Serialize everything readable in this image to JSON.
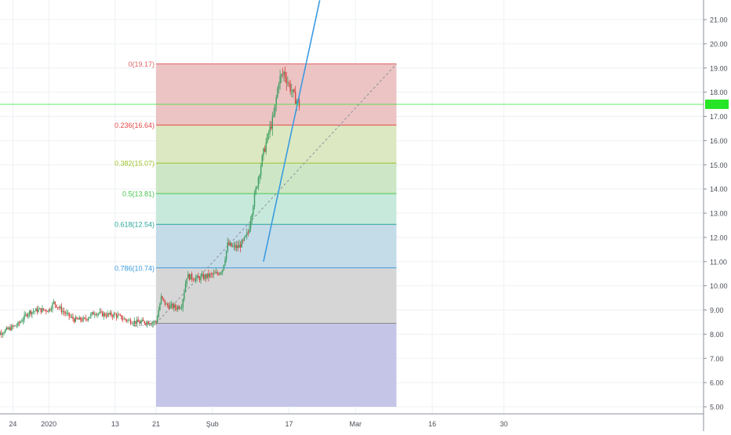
{
  "chart_data": {
    "type": "candlestick",
    "title": "",
    "xlabel": "",
    "ylabel": "",
    "y_axis_position": "right",
    "ylim": [
      4.8,
      21.6
    ],
    "grid": true,
    "y_ticks": [
      "5.00",
      "6.00",
      "7.00",
      "8.00",
      "9.00",
      "10.00",
      "11.00",
      "12.00",
      "13.00",
      "14.00",
      "15.00",
      "16.00",
      "17.00",
      "18.00",
      "19.00",
      "20.00",
      "21.00"
    ],
    "x_ticks": [
      {
        "label": "24",
        "day": 24
      },
      {
        "label": "2020",
        "day": 31
      },
      {
        "label": "13",
        "day": 44
      },
      {
        "label": "21",
        "day": 52
      },
      {
        "label": "Şub",
        "day": 63
      },
      {
        "label": "17",
        "day": 78
      },
      {
        "label": "Mar",
        "day": 91
      },
      {
        "label": "16",
        "day": 106
      },
      {
        "label": "30",
        "day": 120
      }
    ],
    "current_price": 17.5,
    "current_price_color": "#26e526",
    "fibonacci": {
      "start_day": 52,
      "end_day": 99,
      "levels": [
        {
          "label": "0(19.17)",
          "ratio": 0,
          "price": 19.17,
          "color": "#e06666",
          "fill": "#ecc4c4"
        },
        {
          "label": "0.236(16.64)",
          "ratio": 0.236,
          "price": 16.64,
          "color": "#e04848",
          "fill": "#dbe8c2"
        },
        {
          "label": "0.382(15.07)",
          "ratio": 0.382,
          "price": 15.07,
          "color": "#9dc22b",
          "fill": "#cde7c6"
        },
        {
          "label": "0.5(13.81)",
          "ratio": 0.5,
          "price": 13.81,
          "color": "#47c74e",
          "fill": "#c7e9dc"
        },
        {
          "label": "0.618(12.54)",
          "ratio": 0.618,
          "price": 12.54,
          "color": "#2aa89a",
          "fill": "#c4dbe8"
        },
        {
          "label": "0.786(10.74)",
          "ratio": 0.786,
          "price": 10.74,
          "color": "#3a9be0",
          "fill": "#d6d6d6"
        },
        {
          "label": "1(8.45)",
          "ratio": 1,
          "price": 8.45,
          "color": "#888888",
          "fill": "#c5c5e8"
        }
      ],
      "lower_fill_bottom": 5.0
    },
    "trendline": {
      "color": "#3a9be0",
      "points": [
        {
          "day": 73,
          "price": 11.0
        },
        {
          "day": 84,
          "price": 21.8
        }
      ]
    },
    "fib_diagonal": {
      "points": [
        {
          "day": 52,
          "price": 8.45
        },
        {
          "day": 99,
          "price": 19.17
        }
      ]
    },
    "series_anchors": [
      {
        "day": 20,
        "price": 7.5
      },
      {
        "day": 21,
        "price": 8.0
      },
      {
        "day": 23,
        "price": 8.2
      },
      {
        "day": 25,
        "price": 8.4
      },
      {
        "day": 27,
        "price": 8.9
      },
      {
        "day": 29,
        "price": 9.0
      },
      {
        "day": 31,
        "price": 9.0
      },
      {
        "day": 32,
        "price": 9.3
      },
      {
        "day": 34,
        "price": 8.9
      },
      {
        "day": 36,
        "price": 8.6
      },
      {
        "day": 38,
        "price": 8.6
      },
      {
        "day": 40,
        "price": 8.9
      },
      {
        "day": 42,
        "price": 8.8
      },
      {
        "day": 44,
        "price": 8.8
      },
      {
        "day": 46,
        "price": 8.6
      },
      {
        "day": 48,
        "price": 8.5
      },
      {
        "day": 50,
        "price": 8.5
      },
      {
        "day": 52,
        "price": 8.5
      },
      {
        "day": 53,
        "price": 9.5
      },
      {
        "day": 54,
        "price": 9.2
      },
      {
        "day": 56,
        "price": 9.1
      },
      {
        "day": 57,
        "price": 9.2
      },
      {
        "day": 58,
        "price": 10.4
      },
      {
        "day": 60,
        "price": 10.3
      },
      {
        "day": 62,
        "price": 10.4
      },
      {
        "day": 64,
        "price": 10.5
      },
      {
        "day": 65,
        "price": 10.7
      },
      {
        "day": 66,
        "price": 11.7
      },
      {
        "day": 67,
        "price": 11.6
      },
      {
        "day": 68,
        "price": 11.6
      },
      {
        "day": 69,
        "price": 11.8
      },
      {
        "day": 70,
        "price": 12.2
      },
      {
        "day": 71,
        "price": 13.4
      },
      {
        "day": 72,
        "price": 14.5
      },
      {
        "day": 73,
        "price": 15.5
      },
      {
        "day": 74,
        "price": 16.3
      },
      {
        "day": 75,
        "price": 17.0
      },
      {
        "day": 76,
        "price": 18.5
      },
      {
        "day": 77,
        "price": 18.8
      },
      {
        "day": 78,
        "price": 18.3
      },
      {
        "day": 79,
        "price": 17.8
      },
      {
        "day": 80,
        "price": 17.5
      }
    ]
  }
}
